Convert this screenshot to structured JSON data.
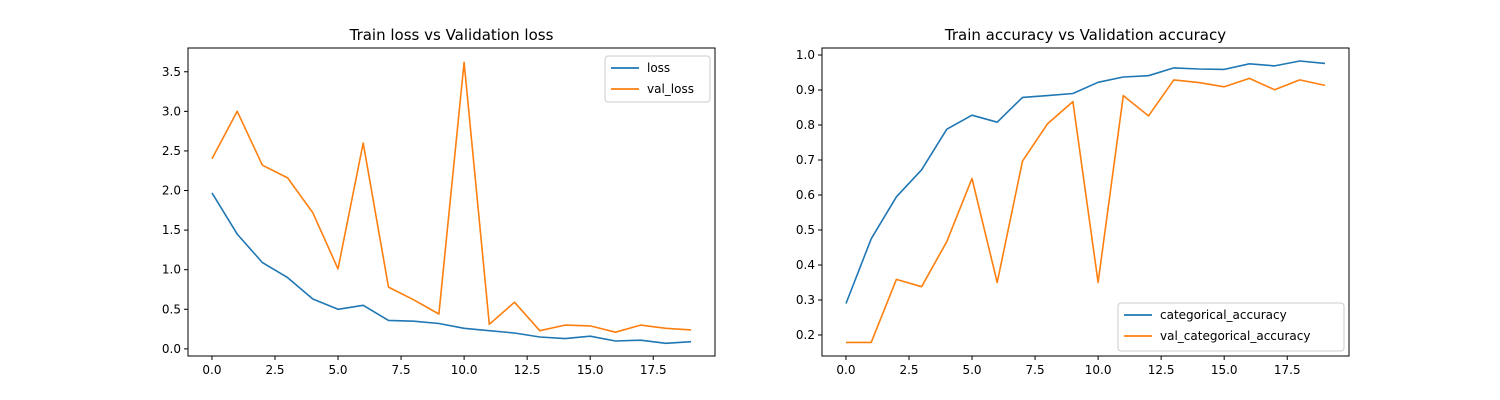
{
  "chart_data": [
    {
      "type": "line",
      "title": "Train loss vs Validation loss",
      "xlabel": "",
      "ylabel": "",
      "xlim": [
        -0.95,
        19.95
      ],
      "ylim": [
        -0.09,
        3.8
      ],
      "xticks": [
        0,
        2.5,
        5,
        7.5,
        10,
        12.5,
        15,
        17.5
      ],
      "xtick_labels": [
        "0.0",
        "2.5",
        "5.0",
        "7.5",
        "10.0",
        "12.5",
        "15.0",
        "17.5"
      ],
      "yticks": [
        0,
        0.5,
        1,
        1.5,
        2,
        2.5,
        3,
        3.5
      ],
      "ytick_labels": [
        "0.0",
        "0.5",
        "1.0",
        "1.5",
        "2.0",
        "2.5",
        "3.0",
        "3.5"
      ],
      "legend_position": "top-right",
      "grid": false,
      "x": [
        0,
        1,
        2,
        3,
        4,
        5,
        6,
        7,
        8,
        9,
        10,
        11,
        12,
        13,
        14,
        15,
        16,
        17,
        18,
        19
      ],
      "series": [
        {
          "name": "loss",
          "color": "#1f77b4",
          "values": [
            1.97,
            1.45,
            1.09,
            0.9,
            0.63,
            0.5,
            0.55,
            0.36,
            0.35,
            0.32,
            0.26,
            0.23,
            0.2,
            0.15,
            0.13,
            0.16,
            0.1,
            0.11,
            0.07,
            0.09
          ]
        },
        {
          "name": "val_loss",
          "color": "#ff7f0e",
          "values": [
            2.4,
            3.0,
            2.32,
            2.16,
            1.72,
            1.01,
            2.6,
            0.78,
            0.62,
            0.44,
            3.62,
            0.31,
            0.59,
            0.23,
            0.3,
            0.29,
            0.21,
            0.3,
            0.26,
            0.24
          ]
        }
      ]
    },
    {
      "type": "line",
      "title": "Train accuracy vs Validation accuracy",
      "xlabel": "",
      "ylabel": "",
      "xlim": [
        -0.95,
        19.95
      ],
      "ylim": [
        0.14,
        1.02
      ],
      "xticks": [
        0,
        2.5,
        5,
        7.5,
        10,
        12.5,
        15,
        17.5
      ],
      "xtick_labels": [
        "0.0",
        "2.5",
        "5.0",
        "7.5",
        "10.0",
        "12.5",
        "15.0",
        "17.5"
      ],
      "yticks": [
        0.2,
        0.3,
        0.4,
        0.5,
        0.6,
        0.7,
        0.8,
        0.9,
        1.0
      ],
      "ytick_labels": [
        "0.2",
        "0.3",
        "0.4",
        "0.5",
        "0.6",
        "0.7",
        "0.8",
        "0.9",
        "1.0"
      ],
      "legend_position": "bottom-right",
      "grid": false,
      "x": [
        0,
        1,
        2,
        3,
        4,
        5,
        6,
        7,
        8,
        9,
        10,
        11,
        12,
        13,
        14,
        15,
        16,
        17,
        18,
        19
      ],
      "series": [
        {
          "name": "categorical_accuracy",
          "color": "#1f77b4",
          "values": [
            0.29,
            0.475,
            0.595,
            0.672,
            0.788,
            0.828,
            0.808,
            0.879,
            0.884,
            0.89,
            0.922,
            0.937,
            0.941,
            0.963,
            0.96,
            0.959,
            0.975,
            0.969,
            0.983,
            0.976
          ]
        },
        {
          "name": "val_categorical_accuracy",
          "color": "#ff7f0e",
          "values": [
            0.179,
            0.179,
            0.359,
            0.338,
            0.467,
            0.647,
            0.35,
            0.697,
            0.804,
            0.867,
            0.35,
            0.884,
            0.826,
            0.929,
            0.921,
            0.909,
            0.933,
            0.901,
            0.929,
            0.913
          ]
        }
      ]
    }
  ]
}
